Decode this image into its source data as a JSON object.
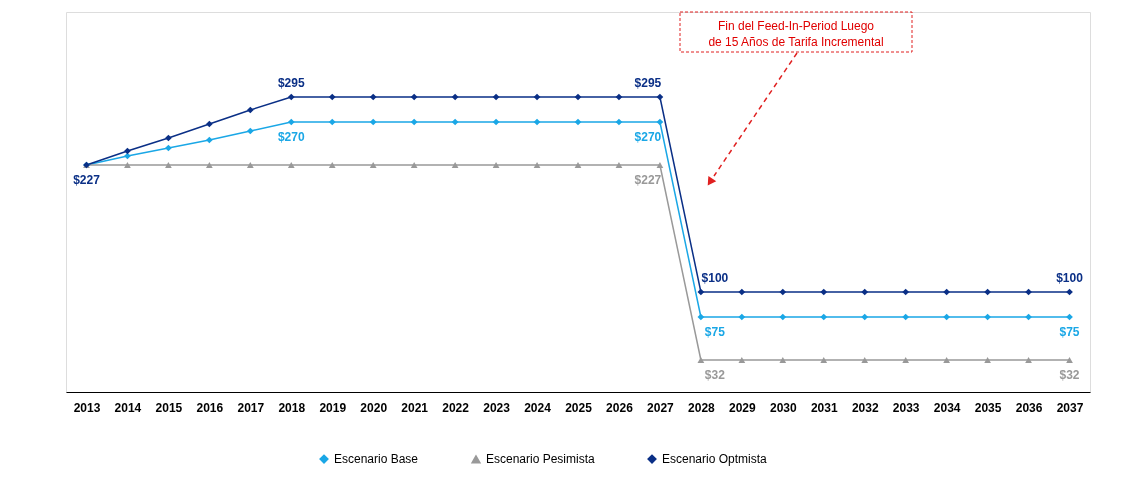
{
  "chart_data": {
    "type": "line",
    "categories": [
      "2013",
      "2014",
      "2015",
      "2016",
      "2017",
      "2018",
      "2019",
      "2020",
      "2021",
      "2022",
      "2023",
      "2024",
      "2025",
      "2026",
      "2027",
      "2028",
      "2029",
      "2030",
      "2031",
      "2032",
      "2033",
      "2034",
      "2035",
      "2036",
      "2037"
    ],
    "series": [
      {
        "name": "Escenario Base",
        "color": "#1aa7e6",
        "marker": "diamond",
        "values": [
          227,
          236,
          244,
          252,
          261,
          270,
          270,
          270,
          270,
          270,
          270,
          270,
          270,
          270,
          270,
          75,
          75,
          75,
          75,
          75,
          75,
          75,
          75,
          75,
          75
        ],
        "value_labels": [
          null,
          null,
          null,
          null,
          null,
          "$270",
          null,
          null,
          null,
          null,
          null,
          null,
          null,
          null,
          "$270",
          "$75",
          null,
          null,
          null,
          null,
          null,
          null,
          null,
          null,
          "$75"
        ]
      },
      {
        "name": "Escenario Pesimista",
        "color": "#999999",
        "marker": "triangle",
        "values": [
          227,
          227,
          227,
          227,
          227,
          227,
          227,
          227,
          227,
          227,
          227,
          227,
          227,
          227,
          227,
          32,
          32,
          32,
          32,
          32,
          32,
          32,
          32,
          32,
          32
        ],
        "value_labels": [
          null,
          null,
          null,
          null,
          null,
          null,
          null,
          null,
          null,
          null,
          null,
          null,
          null,
          null,
          "$227",
          "$32",
          null,
          null,
          null,
          null,
          null,
          null,
          null,
          null,
          "$32"
        ]
      },
      {
        "name": "Escenario Optmista",
        "color": "#0a2f86",
        "marker": "diamond",
        "values": [
          227,
          241,
          254,
          268,
          282,
          295,
          295,
          295,
          295,
          295,
          295,
          295,
          295,
          295,
          295,
          100,
          100,
          100,
          100,
          100,
          100,
          100,
          100,
          100,
          100
        ],
        "value_labels": [
          "$227",
          null,
          null,
          null,
          null,
          "$295",
          null,
          null,
          null,
          null,
          null,
          null,
          null,
          null,
          "$295",
          "$100",
          null,
          null,
          null,
          null,
          null,
          null,
          null,
          null,
          "$100"
        ]
      }
    ],
    "ylim": [
      0,
      380
    ],
    "tick_labels": "x",
    "grid": false,
    "legend": "bottom",
    "line_style": "solid",
    "annotations": [
      "Fin del Feed-In-Period Luego\nde 15 Años de Tarifa Incremental"
    ]
  }
}
